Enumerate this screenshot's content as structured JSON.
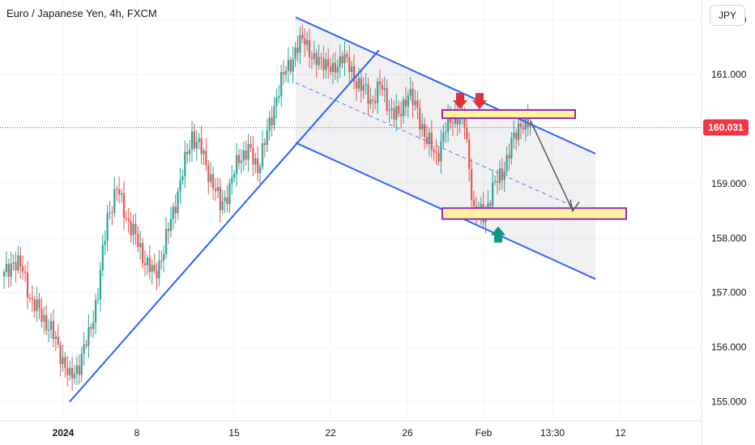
{
  "header": {
    "symbol_title": "Euro / Japanese Yen, 4h, FXCM",
    "currency_label": "JPY"
  },
  "colors": {
    "up": "#26a69a",
    "down": "#ef5350",
    "channel": "#2962ff",
    "zone_fill": "#fff3a0",
    "zone_border": "#9c27b0",
    "price_label_bg": "#f23645",
    "arrow_down": "#e0313f",
    "arrow_up": "#089981",
    "projection": "#555555"
  },
  "chart_data": {
    "type": "candlestick",
    "symbol": "EUR/JPY",
    "interval": "4h",
    "source": "FXCM",
    "ylim": [
      154.8,
      162.1
    ],
    "y_ticks": [
      "162.000",
      "161.000",
      "160.000",
      "159.000",
      "158.000",
      "157.000",
      "156.000",
      "155.000"
    ],
    "x_ticks": [
      "2024",
      "8",
      "15",
      "22",
      "26",
      "Feb",
      "13:30",
      "12"
    ],
    "last_price": "160.031",
    "price_path_anchors": [
      [
        0,
        157.3
      ],
      [
        4,
        157.6
      ],
      [
        8,
        157.4
      ],
      [
        12,
        156.8
      ],
      [
        16,
        156.6
      ],
      [
        20,
        156.3
      ],
      [
        24,
        155.9
      ],
      [
        28,
        155.4
      ],
      [
        32,
        155.7
      ],
      [
        36,
        156.2
      ],
      [
        40,
        157.0
      ],
      [
        44,
        158.4
      ],
      [
        48,
        158.9
      ],
      [
        52,
        158.4
      ],
      [
        56,
        158.0
      ],
      [
        60,
        157.6
      ],
      [
        64,
        157.3
      ],
      [
        68,
        157.8
      ],
      [
        72,
        158.5
      ],
      [
        76,
        159.2
      ],
      [
        80,
        159.9
      ],
      [
        84,
        159.6
      ],
      [
        88,
        159.1
      ],
      [
        92,
        158.6
      ],
      [
        96,
        158.9
      ],
      [
        100,
        159.5
      ],
      [
        104,
        159.6
      ],
      [
        108,
        159.3
      ],
      [
        112,
        159.9
      ],
      [
        116,
        160.6
      ],
      [
        120,
        161.1
      ],
      [
        124,
        161.4
      ],
      [
        128,
        161.7
      ],
      [
        132,
        161.2
      ],
      [
        136,
        161.3
      ],
      [
        140,
        161.0
      ],
      [
        144,
        161.4
      ],
      [
        148,
        161.0
      ],
      [
        152,
        160.8
      ],
      [
        156,
        160.5
      ],
      [
        160,
        160.8
      ],
      [
        164,
        160.4
      ],
      [
        168,
        160.2
      ],
      [
        172,
        160.7
      ],
      [
        176,
        160.3
      ],
      [
        180,
        159.8
      ],
      [
        184,
        159.5
      ],
      [
        188,
        160.0
      ],
      [
        192,
        160.3
      ],
      [
        196,
        160.1
      ],
      [
        200,
        158.5
      ],
      [
        204,
        158.4
      ],
      [
        208,
        158.9
      ],
      [
        212,
        159.2
      ],
      [
        216,
        159.7
      ],
      [
        220,
        160.15
      ],
      [
        224,
        160.03
      ]
    ],
    "annotations": {
      "channel_upper": {
        "from": [
          0.0,
          162.05
        ],
        "to": [
          1.0,
          159.55
        ]
      },
      "channel_lower": {
        "from": [
          0.0,
          159.75
        ],
        "to": [
          1.0,
          157.25
        ]
      },
      "channel_mid": {
        "from": [
          0.0,
          160.85
        ],
        "to": [
          1.0,
          158.4
        ]
      },
      "uptrend_line": {
        "from": [
          0.0,
          155.0
        ],
        "to": [
          1.0,
          161.45
        ]
      },
      "resistance_zone": [
        160.2,
        160.35
      ],
      "support_zone": [
        158.35,
        158.55
      ],
      "projection_arrow": {
        "from": 160.15,
        "to": 158.5
      }
    }
  }
}
